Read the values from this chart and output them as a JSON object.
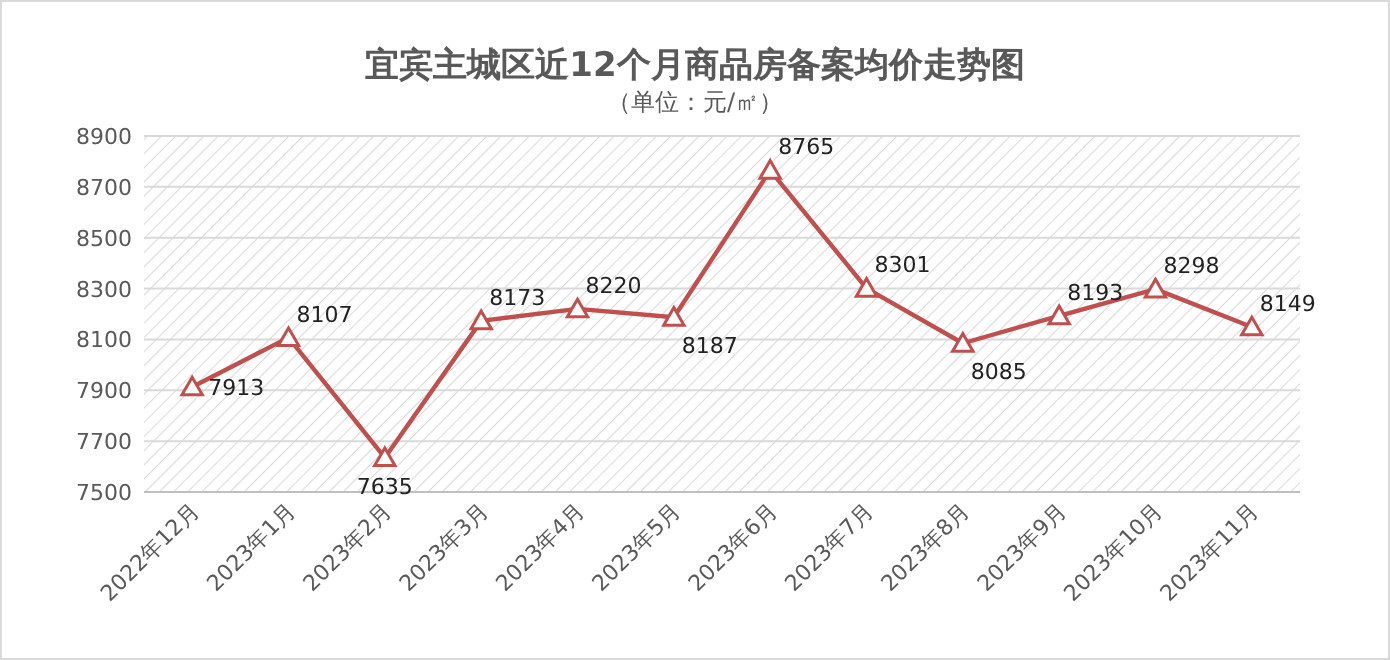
{
  "chart_data": {
    "type": "line",
    "title": "宜宾主城区近12个月商品房备案均价走势图",
    "subtitle": "（单位：元/㎡）",
    "categories": [
      "2022年12月",
      "2023年1月",
      "2023年2月",
      "2023年3月",
      "2023年4月",
      "2023年5月",
      "2023年6月",
      "2023年7月",
      "2023年8月",
      "2023年9月",
      "2023年10月",
      "2023年11月"
    ],
    "series": [
      {
        "color": "#c0504d",
        "values": [
          7913,
          8107,
          7635,
          8173,
          8220,
          8187,
          8765,
          8301,
          8085,
          8193,
          8298,
          8149
        ]
      }
    ],
    "ylim": [
      7500,
      8900
    ],
    "yticks": [
      7500,
      7700,
      7900,
      8100,
      8300,
      8500,
      8700,
      8900
    ],
    "grid": "y",
    "marker": "triangle",
    "data_labels": true
  }
}
